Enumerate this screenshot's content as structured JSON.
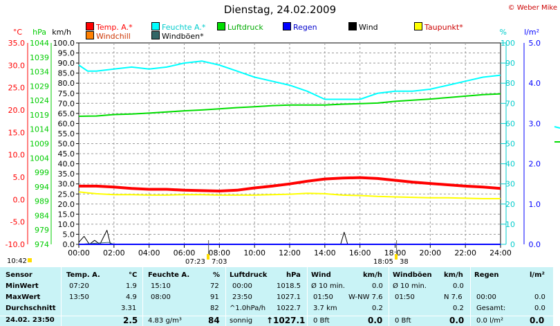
{
  "header": {
    "title": "Dienstag, 24.02.2009",
    "copyright": "© Weber Mike"
  },
  "legend": [
    {
      "label": "Temp. A.*",
      "color": "#ff0000"
    },
    {
      "label": "Feuchte A.*",
      "color": "#00ffff"
    },
    {
      "label": "Luftdruck",
      "color": "#00dd00"
    },
    {
      "label": "Regen",
      "color": "#0000ff"
    },
    {
      "label": "Wind",
      "color": "#000000"
    },
    {
      "label": "Taupunkt*",
      "color": "#ffff00"
    },
    {
      "label": "Windchill",
      "color": "#ff8000"
    },
    {
      "label": "Windböen*",
      "color": "#336666"
    }
  ],
  "chart_data": {
    "type": "line",
    "title": "Dienstag, 24.02.2009",
    "x_ticks": [
      "00:00",
      "02:00",
      "04:00",
      "06:00",
      "08:00",
      "10:00",
      "12:00",
      "14:00",
      "16:00",
      "18:00",
      "20:00",
      "22:00",
      "24:00"
    ],
    "axes": {
      "temp": {
        "unit": "°C",
        "ticks": [
          "35.0",
          "30.0",
          "25.0",
          "20.0",
          "15.0",
          "10.0",
          "5.0",
          "0.0",
          "-5.0",
          "-10.0"
        ],
        "ylim": [
          -10,
          35
        ],
        "color": "#ff0000"
      },
      "pressure": {
        "unit": "hPa",
        "ticks": [
          "1044",
          "1039",
          "1034",
          "1029",
          "1024",
          "1019",
          "1014",
          "1009",
          "1004",
          "999",
          "994",
          "989",
          "984",
          "979",
          "974"
        ],
        "ylim": [
          974,
          1044
        ],
        "color": "#00cc00"
      },
      "wind": {
        "unit": "km/h",
        "ticks": [
          "100.0",
          "95.0",
          "90.0",
          "85.0",
          "80.0",
          "75.0",
          "70.0",
          "65.0",
          "60.0",
          "55.0",
          "50.0",
          "45.0",
          "40.0",
          "35.0",
          "30.0",
          "25.0",
          "20.0",
          "15.0",
          "10.0",
          "5.0",
          "0.0"
        ],
        "ylim": [
          0,
          100
        ],
        "color": "#000000"
      },
      "humidity": {
        "unit": "%",
        "ticks": [
          "100",
          "90",
          "80",
          "70",
          "60",
          "50",
          "40",
          "30",
          "20",
          "10",
          "0"
        ],
        "ylim": [
          0,
          100
        ],
        "color": "#00cccc"
      },
      "rain": {
        "unit": "l/m²",
        "ticks": [
          "5.0",
          "4.0",
          "3.0",
          "2.0",
          "1.0",
          "0.0"
        ],
        "ylim": [
          0,
          5
        ],
        "color": "#0000ff"
      }
    },
    "series": [
      {
        "name": "Temp. A.*",
        "color": "#ff0000",
        "axis": "temp",
        "x": [
          0,
          1,
          2,
          3,
          4,
          5,
          6,
          7,
          8,
          9,
          10,
          11,
          12,
          13,
          14,
          15,
          16,
          17,
          18,
          19,
          20,
          21,
          22,
          23,
          24
        ],
        "values": [
          3.0,
          3.0,
          2.8,
          2.5,
          2.3,
          2.3,
          2.1,
          2.0,
          1.9,
          2.1,
          2.6,
          3.0,
          3.5,
          4.1,
          4.6,
          4.8,
          4.9,
          4.7,
          4.3,
          3.9,
          3.6,
          3.3,
          3.0,
          2.8,
          2.5
        ]
      },
      {
        "name": "Feuchte A.*",
        "color": "#00ffff",
        "axis": "humidity",
        "x": [
          0,
          0.5,
          1,
          2,
          3,
          4,
          5,
          6,
          7,
          8,
          9,
          10,
          11,
          12,
          13,
          14,
          15,
          16,
          17,
          18,
          19,
          20,
          21,
          22,
          23,
          24
        ],
        "values": [
          89,
          86,
          86,
          87,
          88,
          87,
          88,
          90,
          91,
          89,
          86,
          83,
          81,
          79,
          76,
          72,
          72,
          72,
          75,
          76,
          76,
          77,
          79,
          81,
          83,
          84
        ]
      },
      {
        "name": "Luftdruck",
        "color": "#00dd00",
        "axis": "pressure",
        "x": [
          0,
          1,
          2,
          3,
          4,
          5,
          6,
          7,
          8,
          9,
          10,
          11,
          12,
          13,
          14,
          15,
          16,
          17,
          18,
          19,
          20,
          21,
          22,
          23,
          24
        ],
        "values": [
          1018.5,
          1018.6,
          1019.1,
          1019.3,
          1019.6,
          1020.0,
          1020.4,
          1020.7,
          1021.1,
          1021.5,
          1021.8,
          1022.2,
          1022.4,
          1022.4,
          1022.4,
          1022.7,
          1022.9,
          1023.1,
          1023.7,
          1024.1,
          1024.5,
          1025.0,
          1025.5,
          1026.0,
          1026.3
        ]
      },
      {
        "name": "Taupunkt*",
        "color": "#ffff00",
        "axis": "temp",
        "x": [
          0,
          1,
          2,
          3,
          4,
          5,
          6,
          7,
          8,
          9,
          10,
          11,
          12,
          13,
          14,
          15,
          16,
          17,
          18,
          19,
          20,
          21,
          22,
          23,
          24
        ],
        "values": [
          1.7,
          1.3,
          1.1,
          1.1,
          1.0,
          1.0,
          1.1,
          1.1,
          1.0,
          1.0,
          1.0,
          1.1,
          1.2,
          1.4,
          1.3,
          1.0,
          0.9,
          0.7,
          0.6,
          0.5,
          0.4,
          0.4,
          0.3,
          0.2,
          0.2
        ]
      },
      {
        "name": "Wind",
        "color": "#000000",
        "axis": "wind",
        "x": [
          0,
          0.3,
          0.6,
          0.9,
          1.2,
          1.6,
          1.8,
          2.0,
          2.3,
          14.9,
          15.1,
          15.3,
          24
        ],
        "values": [
          1,
          4,
          0,
          2,
          0,
          7,
          0,
          0,
          0,
          0,
          6,
          0,
          0
        ]
      },
      {
        "name": "Windböen*",
        "color": "#336666",
        "axis": "wind",
        "x": [
          0,
          1.7,
          2.0,
          2.3,
          24
        ],
        "values": [
          0,
          1,
          0,
          0,
          0
        ]
      },
      {
        "name": "Regen",
        "color": "#0000ff",
        "axis": "rain",
        "x": [
          0,
          24
        ],
        "values": [
          0,
          0
        ]
      }
    ],
    "grid": true
  },
  "bottom_ticks": {
    "left_time": "10:42",
    "sunrise_time": "07:23",
    "sunrise_time_b": "7:03",
    "sunset_time": "18:05",
    "sunset_time_b": "38"
  },
  "stats": {
    "rows": [
      "Sensor",
      "MinWert",
      "MaxWert",
      "Durchschnitt",
      "24.02. 23:50"
    ],
    "temp": {
      "header": "Temp. A.",
      "unit": "°C",
      "min_time": "07:20",
      "min": "1.9",
      "max_time": "13:50",
      "max": "4.9",
      "avg": "3.31",
      "now": "2.5"
    },
    "hum": {
      "header": "Feuchte A.",
      "unit": "%",
      "min_time": "15:10",
      "min": "72",
      "max_time": "08:00",
      "max": "91",
      "avg": "82",
      "abs": "4.83 g/m³",
      "now": "84"
    },
    "press": {
      "header": "Luftdruck",
      "unit": "hPa",
      "min_time": "00:00",
      "min": "1018.5",
      "max_time": "23:50",
      "max": "1027.1",
      "trend": "^1.0hPa/h",
      "avg": "1022.7",
      "state": "sonnig",
      "now": "↑1027.1"
    },
    "wind": {
      "header": "Wind",
      "unit": "km/h",
      "row1_label": "Ø 10 min.",
      "row1_val": "0.0",
      "row2_time": "01:50",
      "row2_val": "W-NW 7.6",
      "row3_label": "3.7 km",
      "row3_val": "0.2",
      "row4_label": "0 Bft",
      "row4_val": "0.0"
    },
    "gust": {
      "header": "Windböen",
      "unit": "km/h",
      "row1_label": "Ø 10 min.",
      "row1_val": "0.0",
      "row2_time": "01:50",
      "row2_val": "N 7.6",
      "row3_val": "0.2",
      "row4_label": "0 Bft",
      "row4_val": "0.0"
    },
    "rain": {
      "header": "Regen",
      "unit": "l/m²",
      "row2_time": "00:00",
      "row2_val": "0.0",
      "row3_label": "Gesamt:",
      "row3_val": "0.0",
      "row4_label": "0.0 l/m²",
      "row4_val": "0.0"
    }
  }
}
